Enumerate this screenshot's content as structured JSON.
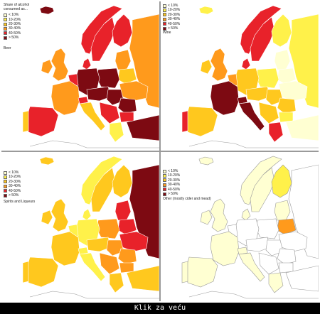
{
  "legend": {
    "title": "Share of alcohol consumed as...",
    "classes": [
      {
        "label": "< 10%",
        "color": "#ffffd2"
      },
      {
        "label": "10-20%",
        "color": "#fff14a"
      },
      {
        "label": "20-30%",
        "color": "#ffc81e"
      },
      {
        "label": "30-40%",
        "color": "#ff9a1c"
      },
      {
        "label": "40-50%",
        "color": "#e8222a"
      },
      {
        "label": "> 50%",
        "color": "#7d0a12"
      }
    ]
  },
  "panels": [
    {
      "id": "beer",
      "category": "Beer",
      "show_title": true
    },
    {
      "id": "wine",
      "category": "Wine",
      "show_title": false
    },
    {
      "id": "spirits",
      "category": "Spirits and Liqueurs",
      "show_title": false
    },
    {
      "id": "other",
      "category": "Other (mostly cider and mead)",
      "show_title": false
    }
  ],
  "colors": {
    "sea": "#ffffff",
    "no_data": "#e0e0e0",
    "border": "#9a9a9a",
    "caption_bar": "#000000"
  },
  "caption": "Klik za veću"
}
